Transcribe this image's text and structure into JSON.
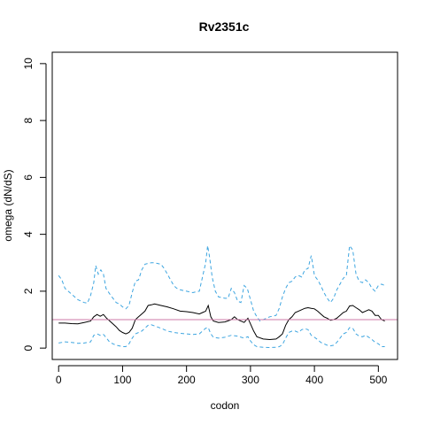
{
  "chart_data": {
    "type": "line",
    "title": "Rv2351c",
    "xlabel": "codon",
    "ylabel": "omega (dN/dS)",
    "xlim": [
      -10,
      530
    ],
    "ylim": [
      -0.4,
      10.4
    ],
    "x_ticks": [
      0,
      100,
      200,
      300,
      400,
      500
    ],
    "y_ticks": [
      0,
      2,
      4,
      6,
      8,
      10
    ],
    "grid": false,
    "reference_line": {
      "y": 1,
      "color": "#cc79a7"
    },
    "series": [
      {
        "style": "solid",
        "color": "#000000",
        "points": [
          [
            0,
            0.88
          ],
          [
            10,
            0.88
          ],
          [
            20,
            0.86
          ],
          [
            30,
            0.85
          ],
          [
            40,
            0.9
          ],
          [
            50,
            0.95
          ],
          [
            55,
            1.1
          ],
          [
            60,
            1.18
          ],
          [
            65,
            1.12
          ],
          [
            70,
            1.18
          ],
          [
            75,
            1.05
          ],
          [
            80,
            0.95
          ],
          [
            90,
            0.75
          ],
          [
            95,
            0.62
          ],
          [
            100,
            0.55
          ],
          [
            105,
            0.5
          ],
          [
            110,
            0.55
          ],
          [
            115,
            0.7
          ],
          [
            120,
            1.0
          ],
          [
            125,
            1.1
          ],
          [
            130,
            1.2
          ],
          [
            135,
            1.3
          ],
          [
            140,
            1.5
          ],
          [
            145,
            1.52
          ],
          [
            150,
            1.55
          ],
          [
            160,
            1.5
          ],
          [
            170,
            1.45
          ],
          [
            180,
            1.38
          ],
          [
            190,
            1.3
          ],
          [
            200,
            1.28
          ],
          [
            210,
            1.25
          ],
          [
            220,
            1.2
          ],
          [
            225,
            1.25
          ],
          [
            230,
            1.3
          ],
          [
            234,
            1.5
          ],
          [
            238,
            1.1
          ],
          [
            242,
            0.95
          ],
          [
            250,
            0.9
          ],
          [
            260,
            0.92
          ],
          [
            270,
            1.0
          ],
          [
            275,
            1.1
          ],
          [
            280,
            1.0
          ],
          [
            290,
            0.9
          ],
          [
            296,
            1.05
          ],
          [
            300,
            0.85
          ],
          [
            305,
            0.6
          ],
          [
            310,
            0.4
          ],
          [
            320,
            0.32
          ],
          [
            330,
            0.3
          ],
          [
            340,
            0.32
          ],
          [
            345,
            0.4
          ],
          [
            350,
            0.5
          ],
          [
            355,
            0.8
          ],
          [
            360,
            1.0
          ],
          [
            365,
            1.1
          ],
          [
            370,
            1.25
          ],
          [
            375,
            1.3
          ],
          [
            380,
            1.35
          ],
          [
            385,
            1.4
          ],
          [
            390,
            1.42
          ],
          [
            395,
            1.4
          ],
          [
            400,
            1.38
          ],
          [
            405,
            1.3
          ],
          [
            410,
            1.2
          ],
          [
            415,
            1.1
          ],
          [
            420,
            1.05
          ],
          [
            425,
            0.98
          ],
          [
            430,
            1.0
          ],
          [
            435,
            1.05
          ],
          [
            440,
            1.15
          ],
          [
            445,
            1.25
          ],
          [
            450,
            1.3
          ],
          [
            455,
            1.48
          ],
          [
            460,
            1.5
          ],
          [
            465,
            1.42
          ],
          [
            470,
            1.35
          ],
          [
            475,
            1.25
          ],
          [
            480,
            1.3
          ],
          [
            485,
            1.35
          ],
          [
            490,
            1.3
          ],
          [
            495,
            1.15
          ],
          [
            500,
            1.15
          ],
          [
            505,
            1.0
          ],
          [
            510,
            0.95
          ]
        ]
      },
      {
        "style": "dashed",
        "color": "#3da5e0",
        "points": [
          [
            0,
            2.55
          ],
          [
            5,
            2.4
          ],
          [
            10,
            2.1
          ],
          [
            20,
            1.9
          ],
          [
            30,
            1.7
          ],
          [
            40,
            1.6
          ],
          [
            45,
            1.58
          ],
          [
            50,
            1.85
          ],
          [
            55,
            2.3
          ],
          [
            58,
            2.9
          ],
          [
            62,
            2.6
          ],
          [
            66,
            2.75
          ],
          [
            70,
            2.6
          ],
          [
            74,
            2.1
          ],
          [
            80,
            1.9
          ],
          [
            85,
            1.75
          ],
          [
            90,
            1.6
          ],
          [
            95,
            1.55
          ],
          [
            100,
            1.45
          ],
          [
            105,
            1.38
          ],
          [
            110,
            1.5
          ],
          [
            115,
            1.95
          ],
          [
            120,
            2.35
          ],
          [
            125,
            2.4
          ],
          [
            130,
            2.75
          ],
          [
            135,
            2.95
          ],
          [
            140,
            2.98
          ],
          [
            145,
            3.0
          ],
          [
            150,
            3.0
          ],
          [
            160,
            2.95
          ],
          [
            165,
            2.8
          ],
          [
            170,
            2.6
          ],
          [
            175,
            2.4
          ],
          [
            180,
            2.2
          ],
          [
            185,
            2.1
          ],
          [
            190,
            2.05
          ],
          [
            200,
            2.0
          ],
          [
            210,
            1.95
          ],
          [
            215,
            1.98
          ],
          [
            220,
            2.0
          ],
          [
            225,
            2.5
          ],
          [
            230,
            3.0
          ],
          [
            233,
            3.6
          ],
          [
            236,
            3.2
          ],
          [
            240,
            2.5
          ],
          [
            245,
            2.0
          ],
          [
            250,
            1.8
          ],
          [
            260,
            1.75
          ],
          [
            265,
            1.75
          ],
          [
            270,
            2.1
          ],
          [
            275,
            1.95
          ],
          [
            280,
            1.65
          ],
          [
            285,
            1.6
          ],
          [
            290,
            2.2
          ],
          [
            295,
            2.1
          ],
          [
            300,
            1.7
          ],
          [
            305,
            1.3
          ],
          [
            310,
            1.1
          ],
          [
            315,
            0.95
          ],
          [
            320,
            1.0
          ],
          [
            330,
            1.1
          ],
          [
            340,
            1.15
          ],
          [
            345,
            1.4
          ],
          [
            350,
            1.8
          ],
          [
            355,
            2.1
          ],
          [
            360,
            2.3
          ],
          [
            365,
            2.35
          ],
          [
            370,
            2.5
          ],
          [
            375,
            2.55
          ],
          [
            380,
            2.5
          ],
          [
            385,
            2.75
          ],
          [
            390,
            2.8
          ],
          [
            395,
            3.25
          ],
          [
            398,
            2.85
          ],
          [
            400,
            2.55
          ],
          [
            405,
            2.4
          ],
          [
            410,
            2.2
          ],
          [
            415,
            1.95
          ],
          [
            420,
            1.75
          ],
          [
            425,
            1.6
          ],
          [
            430,
            1.75
          ],
          [
            435,
            2.05
          ],
          [
            440,
            2.25
          ],
          [
            445,
            2.45
          ],
          [
            450,
            2.55
          ],
          [
            455,
            3.6
          ],
          [
            460,
            3.45
          ],
          [
            465,
            2.6
          ],
          [
            470,
            2.35
          ],
          [
            475,
            2.3
          ],
          [
            480,
            2.4
          ],
          [
            485,
            2.3
          ],
          [
            490,
            2.1
          ],
          [
            495,
            2.0
          ],
          [
            500,
            2.2
          ],
          [
            505,
            2.25
          ],
          [
            510,
            2.2
          ]
        ]
      },
      {
        "style": "dashed",
        "color": "#3da5e0",
        "points": [
          [
            0,
            0.18
          ],
          [
            10,
            0.22
          ],
          [
            20,
            0.2
          ],
          [
            30,
            0.17
          ],
          [
            40,
            0.18
          ],
          [
            50,
            0.22
          ],
          [
            55,
            0.45
          ],
          [
            60,
            0.5
          ],
          [
            65,
            0.45
          ],
          [
            70,
            0.48
          ],
          [
            75,
            0.35
          ],
          [
            80,
            0.2
          ],
          [
            90,
            0.1
          ],
          [
            100,
            0.05
          ],
          [
            105,
            0.05
          ],
          [
            110,
            0.15
          ],
          [
            115,
            0.35
          ],
          [
            120,
            0.5
          ],
          [
            130,
            0.6
          ],
          [
            140,
            0.8
          ],
          [
            145,
            0.82
          ],
          [
            150,
            0.78
          ],
          [
            160,
            0.7
          ],
          [
            170,
            0.6
          ],
          [
            180,
            0.55
          ],
          [
            190,
            0.52
          ],
          [
            200,
            0.5
          ],
          [
            210,
            0.48
          ],
          [
            220,
            0.5
          ],
          [
            230,
            0.7
          ],
          [
            234,
            0.72
          ],
          [
            238,
            0.5
          ],
          [
            242,
            0.38
          ],
          [
            250,
            0.35
          ],
          [
            260,
            0.38
          ],
          [
            270,
            0.45
          ],
          [
            280,
            0.42
          ],
          [
            290,
            0.35
          ],
          [
            296,
            0.4
          ],
          [
            300,
            0.25
          ],
          [
            305,
            0.12
          ],
          [
            310,
            0.05
          ],
          [
            320,
            0.03
          ],
          [
            330,
            0.02
          ],
          [
            340,
            0.03
          ],
          [
            345,
            0.05
          ],
          [
            350,
            0.12
          ],
          [
            355,
            0.35
          ],
          [
            360,
            0.55
          ],
          [
            365,
            0.6
          ],
          [
            370,
            0.6
          ],
          [
            375,
            0.55
          ],
          [
            380,
            0.65
          ],
          [
            385,
            0.68
          ],
          [
            390,
            0.65
          ],
          [
            395,
            0.45
          ],
          [
            400,
            0.38
          ],
          [
            405,
            0.3
          ],
          [
            410,
            0.2
          ],
          [
            415,
            0.15
          ],
          [
            420,
            0.1
          ],
          [
            425,
            0.08
          ],
          [
            430,
            0.1
          ],
          [
            435,
            0.2
          ],
          [
            440,
            0.35
          ],
          [
            445,
            0.5
          ],
          [
            450,
            0.55
          ],
          [
            455,
            0.72
          ],
          [
            460,
            0.7
          ],
          [
            465,
            0.5
          ],
          [
            470,
            0.42
          ],
          [
            475,
            0.4
          ],
          [
            480,
            0.45
          ],
          [
            485,
            0.38
          ],
          [
            490,
            0.3
          ],
          [
            495,
            0.2
          ],
          [
            500,
            0.15
          ],
          [
            505,
            0.05
          ],
          [
            510,
            0.05
          ]
        ]
      }
    ]
  }
}
